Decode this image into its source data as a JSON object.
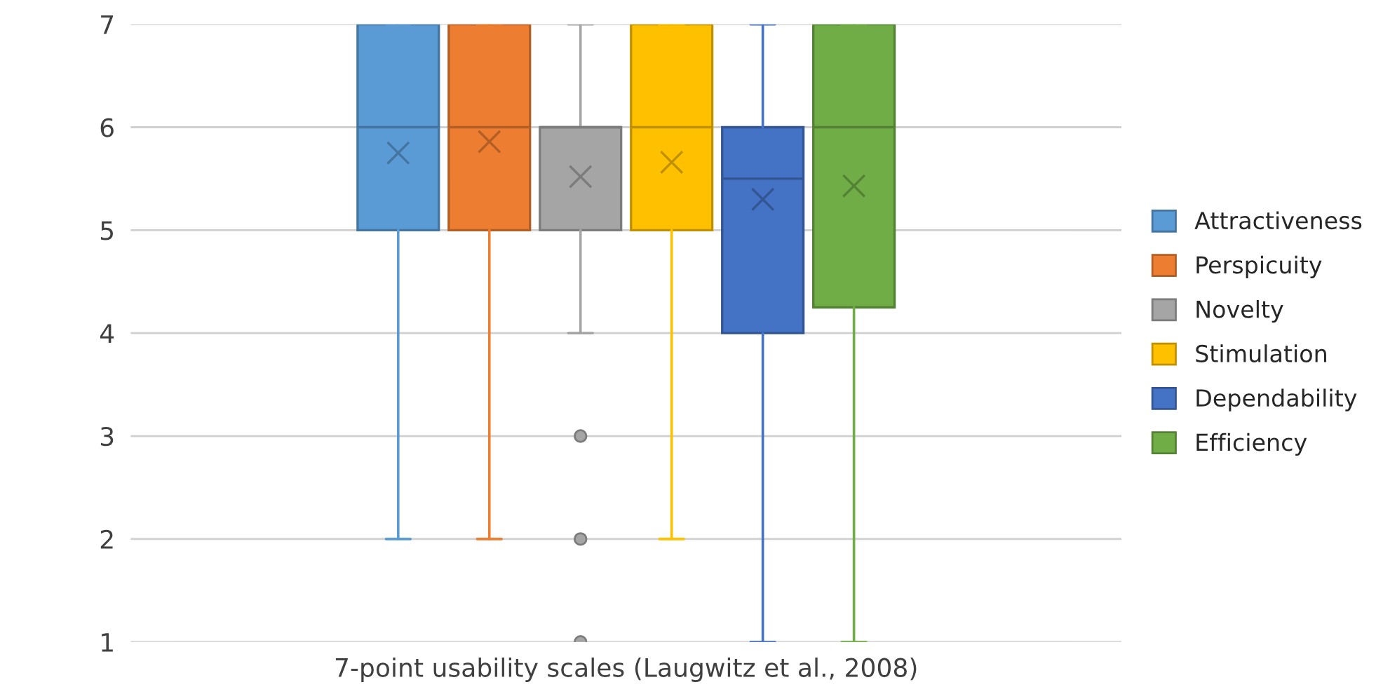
{
  "chart_data": {
    "type": "box",
    "categories": [
      "7-point usability scales (Laugwitz et al., 2008)"
    ],
    "series": [
      {
        "name": "Attractiveness",
        "color": "#5b9bd5",
        "boxes": [
          {
            "low": 2,
            "q1": 5,
            "median": 6,
            "q3": 7,
            "high": 7,
            "mean": 5.75
          }
        ]
      },
      {
        "name": "Perspicuity",
        "color": "#ed7d31",
        "boxes": [
          {
            "low": 2,
            "q1": 5,
            "median": 6,
            "q3": 7,
            "high": 7,
            "mean": 5.86
          }
        ]
      },
      {
        "name": "Novelty",
        "color": "#a5a5a5",
        "boxes": [
          {
            "low": 4,
            "q1": 5,
            "median": 6,
            "q3": 6,
            "high": 7,
            "mean": 5.52,
            "outliers": [
              3,
              2,
              1
            ]
          }
        ]
      },
      {
        "name": "Stimulation",
        "color": "#ffc000",
        "boxes": [
          {
            "low": 2,
            "q1": 5,
            "median": 6,
            "q3": 7,
            "high": 7,
            "mean": 5.66
          }
        ]
      },
      {
        "name": "Dependability",
        "color": "#4472c4",
        "boxes": [
          {
            "low": 1,
            "q1": 4,
            "median": 5.5,
            "q3": 6,
            "high": 7,
            "mean": 5.3
          }
        ]
      },
      {
        "name": "Efficiency",
        "color": "#70ad47",
        "boxes": [
          {
            "low": 1,
            "q1": 4.25,
            "median": 6,
            "q3": 7,
            "high": 7,
            "mean": 5.43
          }
        ]
      }
    ],
    "ylim": [
      1,
      7
    ],
    "yticks": [
      1,
      2,
      3,
      4,
      5,
      6,
      7
    ],
    "grid": "y",
    "legend": "right"
  }
}
